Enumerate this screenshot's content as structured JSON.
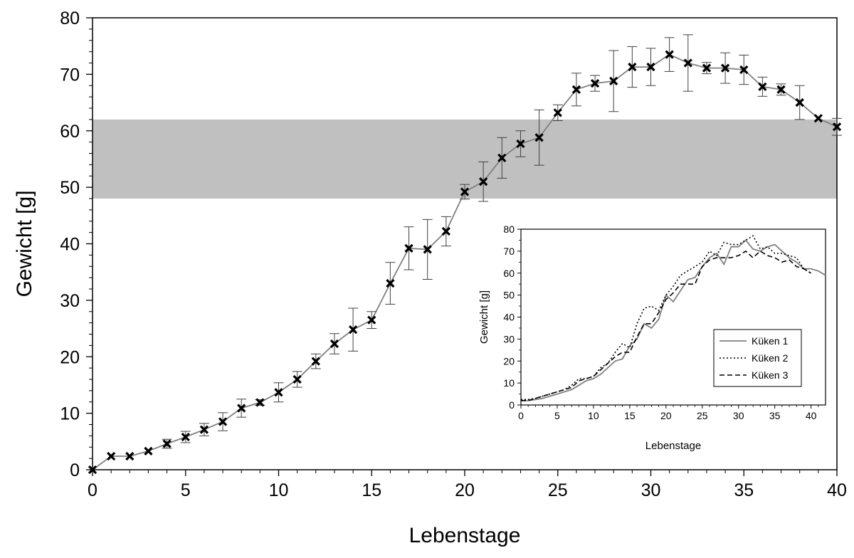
{
  "chart_data": [
    {
      "type": "line",
      "xlabel": "Lebenstage",
      "ylabel": "Gewicht [g]",
      "xlim": [
        0,
        40
      ],
      "ylim": [
        0,
        80
      ],
      "xticks": [
        0,
        5,
        10,
        15,
        20,
        25,
        30,
        35,
        40
      ],
      "yticks": [
        0,
        10,
        20,
        30,
        40,
        50,
        60,
        70,
        80
      ],
      "grid": false,
      "band": {
        "y_from": 48,
        "y_to": 62,
        "color": "#c0c0c0"
      },
      "line_color": "#808080",
      "marker": "x",
      "series": [
        {
          "x": [
            0,
            1,
            2,
            3,
            4,
            5,
            6,
            7,
            8,
            9,
            10,
            11,
            12,
            13,
            14,
            15,
            16,
            17,
            18,
            19,
            20,
            21,
            22,
            23,
            24,
            25,
            26,
            27,
            28,
            29,
            30,
            31,
            32,
            33,
            34,
            35,
            36,
            37,
            38,
            39,
            40
          ],
          "values": [
            0.0,
            2.4,
            2.4,
            3.3,
            4.6,
            5.8,
            7.1,
            8.5,
            10.9,
            11.9,
            13.7,
            16.0,
            19.2,
            22.3,
            24.8,
            26.5,
            33.0,
            39.2,
            39.0,
            42.2,
            49.2,
            51.0,
            55.2,
            57.7,
            58.8,
            63.2,
            67.3,
            68.4,
            68.8,
            71.3,
            71.3,
            73.5,
            72.0,
            71.1,
            71.1,
            70.8,
            67.8,
            67.3,
            65.0,
            62.2,
            60.7
          ],
          "error": [
            0.0,
            0.0,
            0.0,
            0.0,
            0.8,
            1.0,
            1.1,
            1.6,
            1.6,
            0.5,
            1.7,
            1.4,
            1.3,
            1.8,
            3.8,
            1.5,
            3.7,
            3.8,
            5.3,
            2.6,
            1.3,
            3.5,
            3.6,
            2.3,
            4.9,
            1.4,
            2.9,
            1.4,
            5.4,
            3.6,
            3.3,
            3.0,
            5.0,
            1.0,
            2.7,
            2.6,
            1.7,
            1.0,
            3.0,
            0.0,
            1.5
          ]
        }
      ]
    },
    {
      "type": "line",
      "xlabel": "Lebenstage",
      "ylabel": "Gewicht [g]",
      "xlim": [
        0,
        42
      ],
      "ylim": [
        0,
        80
      ],
      "xticks": [
        0,
        5,
        10,
        15,
        20,
        25,
        30,
        35,
        40
      ],
      "yticks": [
        0,
        10,
        20,
        30,
        40,
        50,
        60,
        70,
        80
      ],
      "grid": false,
      "legend": "right",
      "series": [
        {
          "name": "Küken 1",
          "style": "solid",
          "color": "#808080",
          "x": [
            0,
            1,
            2,
            3,
            4,
            5,
            6,
            7,
            8,
            9,
            10,
            11,
            12,
            13,
            14,
            15,
            16,
            17,
            18,
            19,
            20,
            21,
            22,
            23,
            24,
            25,
            26,
            27,
            28,
            29,
            30,
            31,
            32,
            33,
            34,
            35,
            36,
            37,
            38,
            39,
            40,
            41,
            42
          ],
          "values": [
            2,
            2,
            2.5,
            3,
            4,
            5,
            6,
            7,
            9,
            11,
            12,
            14,
            17,
            20,
            21,
            27,
            30,
            37,
            35,
            39,
            50,
            47,
            52,
            57,
            58,
            63,
            67,
            69,
            64,
            72,
            72,
            75,
            71,
            70,
            72,
            73,
            70,
            67,
            65,
            62,
            62,
            61,
            59
          ]
        },
        {
          "name": "Küken 2",
          "style": "dotted",
          "color": "#000000",
          "x": [
            0,
            1,
            2,
            3,
            4,
            5,
            6,
            7,
            8,
            9,
            10,
            11,
            12,
            13,
            14,
            15,
            16,
            17,
            18,
            19,
            20,
            21,
            22,
            23,
            24,
            25,
            26,
            27,
            28,
            29,
            30,
            31,
            32,
            33,
            34,
            35,
            36,
            37,
            38,
            39,
            40
          ],
          "values": [
            2.5,
            2.5,
            3,
            4,
            5,
            6,
            7,
            9,
            12,
            12,
            13,
            17,
            19,
            24,
            28,
            26,
            37,
            44,
            45,
            43,
            50,
            54,
            59,
            61,
            63,
            65,
            70,
            68,
            74,
            73,
            73,
            75,
            77,
            71,
            72,
            69,
            69,
            68,
            67,
            62,
            60
          ]
        },
        {
          "name": "Küken 3",
          "style": "dashed",
          "color": "#000000",
          "x": [
            0,
            1,
            2,
            3,
            4,
            5,
            6,
            7,
            8,
            9,
            10,
            11,
            12,
            13,
            14,
            15,
            16,
            17,
            18,
            19,
            20,
            21,
            22,
            23,
            24,
            25,
            26,
            27,
            28,
            29,
            30,
            31,
            32,
            33,
            34,
            35,
            36,
            37,
            38,
            39,
            40
          ],
          "values": [
            2,
            2,
            3,
            4,
            5,
            6,
            7,
            8,
            11,
            12,
            13,
            16,
            19,
            22,
            24,
            24,
            31,
            37,
            37,
            42,
            48,
            51,
            55,
            55,
            55,
            63,
            66,
            67,
            67,
            67,
            68,
            70,
            67,
            70,
            68,
            67,
            65,
            66,
            63,
            62,
            60
          ]
        }
      ]
    }
  ]
}
